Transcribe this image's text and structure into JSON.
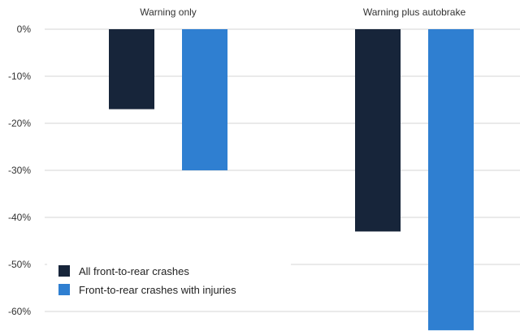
{
  "chart_data": {
    "type": "bar",
    "categories": [
      "Warning only",
      "Warning plus autobrake"
    ],
    "series": [
      {
        "name": "All front-to-rear crashes",
        "values": [
          -17,
          -43
        ],
        "color": "#17253a"
      },
      {
        "name": "Front-to-rear crashes with injuries",
        "values": [
          -30,
          -64
        ],
        "color": "#2f7fd1"
      }
    ],
    "ylim": [
      -64,
      0
    ],
    "yticks": [
      0,
      -10,
      -20,
      -30,
      -40,
      -50,
      -60
    ],
    "ytick_labels": [
      "0%",
      "-10%",
      "-20%",
      "-30%",
      "-40%",
      "-50%",
      "-60%"
    ],
    "grid": true,
    "legend_position": "bottom-left",
    "category_labels_position": "top"
  }
}
